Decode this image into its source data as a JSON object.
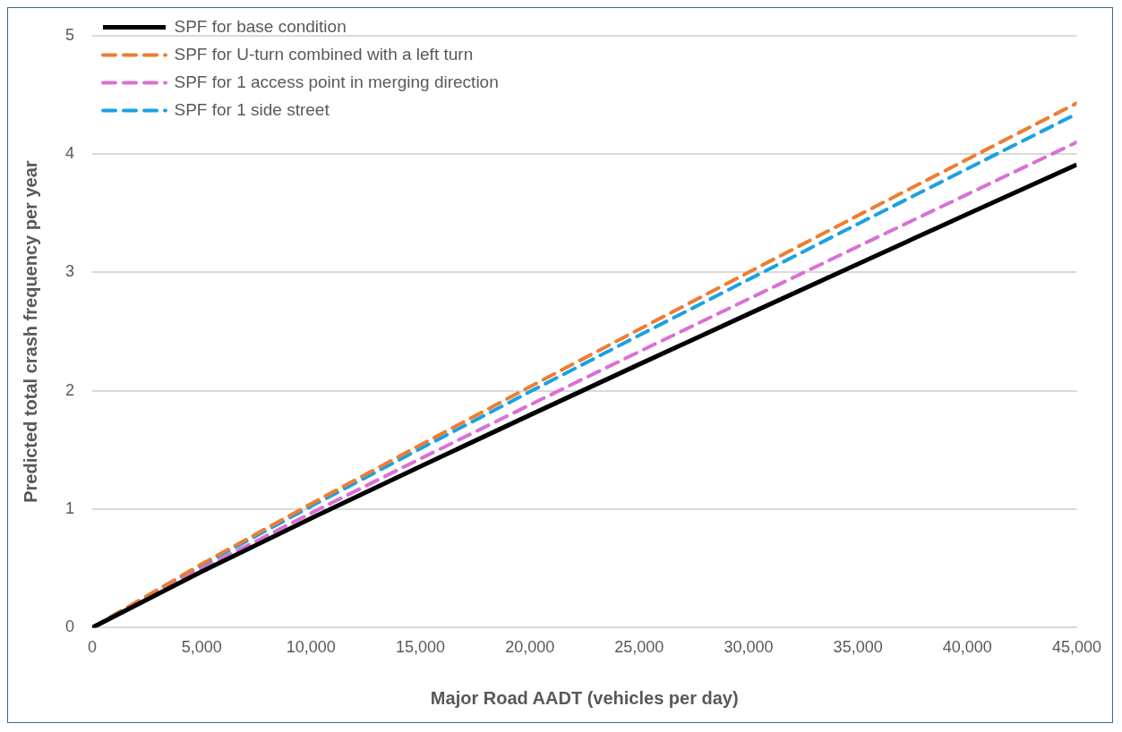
{
  "chart_data": {
    "type": "line",
    "xlabel": "Major Road AADT (vehicles per day)",
    "ylabel": "Predicted total crash frequency per year",
    "x": [
      0,
      5000,
      10000,
      15000,
      20000,
      25000,
      30000,
      35000,
      40000,
      45000
    ],
    "xlim": [
      0,
      45000
    ],
    "xticks": [
      0,
      {
        "value": 5000,
        "label": "5,000"
      },
      {
        "value": 10000,
        "label": "10,000"
      },
      {
        "value": 15000,
        "label": "15,000"
      },
      {
        "value": 20000,
        "label": "20,000"
      },
      {
        "value": 25000,
        "label": "25,000"
      },
      {
        "value": 30000,
        "label": "30,000"
      },
      {
        "value": 35000,
        "label": "35,000"
      },
      {
        "value": 40000,
        "label": "40,000"
      },
      {
        "value": 45000,
        "label": "45,000"
      }
    ],
    "ylim": [
      0,
      5
    ],
    "yticks": [
      0,
      1,
      2,
      3,
      4,
      5
    ],
    "grid": "y",
    "legend": "top left",
    "marker": "none",
    "series": [
      {
        "name": "SPF for base condition",
        "color": "#000000",
        "line_style": "solid",
        "values": [
          0,
          0.474,
          0.923,
          1.362,
          1.795,
          2.224,
          2.649,
          3.072,
          3.492,
          3.91
        ]
      },
      {
        "name": "SPF for U-turn combined with a left turn",
        "color": "#ed7d31",
        "line_style": "dashed",
        "values": [
          0,
          0.537,
          1.046,
          1.543,
          2.034,
          2.52,
          3.001,
          3.481,
          3.956,
          4.43
        ]
      },
      {
        "name": "SPF for 1 access point in merging direction",
        "color": "#da70d6",
        "line_style": "dashed",
        "values": [
          0,
          0.497,
          0.967,
          1.427,
          1.881,
          2.331,
          2.776,
          3.219,
          3.66,
          4.1
        ]
      },
      {
        "name": "SPF for 1 side street",
        "color": "#1ba1e2",
        "line_style": "dashed",
        "values": [
          0,
          0.526,
          1.025,
          1.512,
          1.992,
          2.469,
          2.94,
          3.41,
          3.876,
          4.34
        ]
      }
    ]
  }
}
